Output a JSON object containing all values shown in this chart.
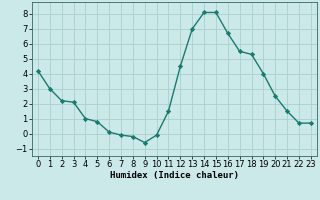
{
  "x": [
    0,
    1,
    2,
    3,
    4,
    5,
    6,
    7,
    8,
    9,
    10,
    11,
    12,
    13,
    14,
    15,
    16,
    17,
    18,
    19,
    20,
    21,
    22,
    23
  ],
  "y": [
    4.2,
    3.0,
    2.2,
    2.1,
    1.0,
    0.8,
    0.1,
    -0.1,
    -0.2,
    -0.6,
    -0.1,
    1.5,
    4.5,
    7.0,
    8.1,
    8.1,
    6.7,
    5.5,
    5.3,
    4.0,
    2.5,
    1.5,
    0.7,
    0.7
  ],
  "line_color": "#1a7a6e",
  "marker": "D",
  "marker_size": 2.2,
  "bg_color": "#cce9e9",
  "grid_color": "#aacfcf",
  "xlabel": "Humidex (Indice chaleur)",
  "ylim": [
    -1.5,
    8.8
  ],
  "xlim": [
    -0.5,
    23.5
  ],
  "yticks": [
    -1,
    0,
    1,
    2,
    3,
    4,
    5,
    6,
    7,
    8
  ],
  "xticks": [
    0,
    1,
    2,
    3,
    4,
    5,
    6,
    7,
    8,
    9,
    10,
    11,
    12,
    13,
    14,
    15,
    16,
    17,
    18,
    19,
    20,
    21,
    22,
    23
  ],
  "xlabel_fontsize": 6.5,
  "tick_fontsize": 6.0,
  "line_width": 1.0
}
